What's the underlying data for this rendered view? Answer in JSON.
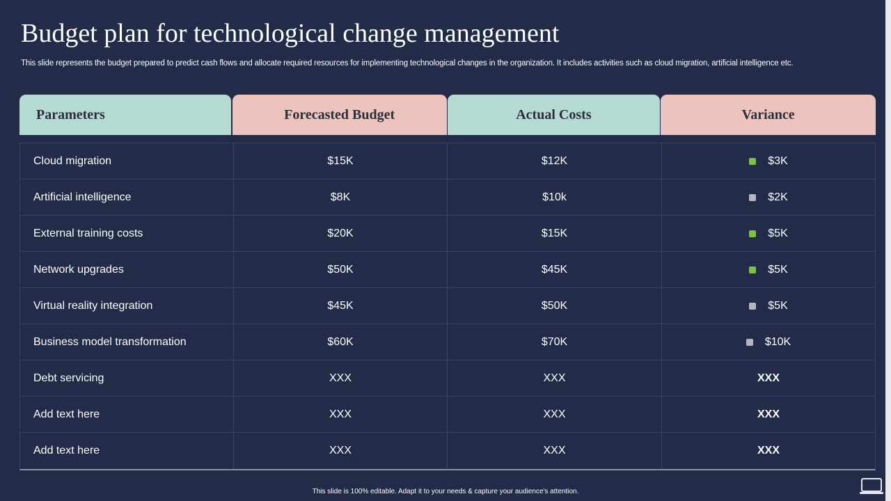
{
  "title": "Budget plan for technological change management",
  "subtitle": "This slide represents the budget prepared to predict cash flows and allocate required resources for implementing technological  changes in the organization. It includes activities such as cloud migration, artificial intelligence etc.",
  "table": {
    "headers": [
      "Parameters",
      "Forecasted Budget",
      "Actual Costs",
      "Variance"
    ],
    "rows": [
      {
        "parameter": "Cloud migration",
        "forecast": "$15K",
        "actual": "$12K",
        "variance": "$3K",
        "marker": "green"
      },
      {
        "parameter": "Artificial intelligence",
        "forecast": "$8K",
        "actual": "$10k",
        "variance": "$2K",
        "marker": "gray"
      },
      {
        "parameter": "External training costs",
        "forecast": "$20K",
        "actual": "$15K",
        "variance": "$5K",
        "marker": "green"
      },
      {
        "parameter": "Network upgrades",
        "forecast": "$50K",
        "actual": "$45K",
        "variance": "$5K",
        "marker": "green"
      },
      {
        "parameter": "Virtual reality integration",
        "forecast": "$45K",
        "actual": "$50K",
        "variance": "$5K",
        "marker": "gray"
      },
      {
        "parameter": "Business model transformation",
        "forecast": "$60K",
        "actual": "$70K",
        "variance": "$10K",
        "marker": "gray"
      },
      {
        "parameter": "Debt servicing",
        "forecast": "XXX",
        "actual": "XXX",
        "variance": "XXX",
        "marker": "none"
      },
      {
        "parameter": "Add text here",
        "forecast": "XXX",
        "actual": "XXX",
        "variance": "XXX",
        "marker": "none"
      },
      {
        "parameter": "Add text here",
        "forecast": "XXX",
        "actual": "XXX",
        "variance": "XXX",
        "marker": "none"
      }
    ]
  },
  "colors": {
    "background": "#222b48",
    "header_teal": "#b5dad3",
    "header_pink": "#ecc3bd",
    "marker_green": "#7cc142",
    "marker_gray": "#b4b6bd"
  },
  "footer": "This slide is 100% editable.  Adapt it to your needs & capture your audience's attention.",
  "icons": {
    "corner": "screen-icon"
  }
}
